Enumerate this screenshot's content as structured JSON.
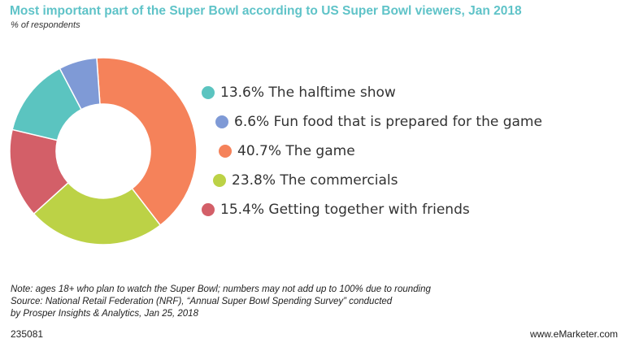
{
  "title": "Most important part of the Super Bowl according to US Super Bowl viewers, Jan 2018",
  "subtitle": "% of respondents",
  "chart_data": {
    "type": "pie",
    "donut": true,
    "categories": [
      "The halftime show",
      "Fun food that is prepared for the game",
      "The game",
      "The commercials",
      "Getting together with friends"
    ],
    "values": [
      13.6,
      6.6,
      40.7,
      23.8,
      15.4
    ],
    "labels": [
      "13.6% The halftime show",
      "6.6% Fun food that is prepared for the game",
      "40.7% The game",
      "23.8% The commercials",
      "15.4% Getting together with friends"
    ],
    "colors": [
      "#5bc4c0",
      "#7f9ad6",
      "#f5825a",
      "#bcd246",
      "#d35f68"
    ],
    "legend_position": "right"
  },
  "footnote": {
    "note": "Note: ages 18+ who plan to watch the Super Bowl; numbers may not add up to 100% due to rounding",
    "source_line1": "Source: National Retail Federation (NRF), “Annual Super Bowl Spending Survey” conducted",
    "source_line2": "by Prosper Insights & Analytics, Jan 25, 2018"
  },
  "chart_id": "235081",
  "brand": "www.eMarketer.com"
}
